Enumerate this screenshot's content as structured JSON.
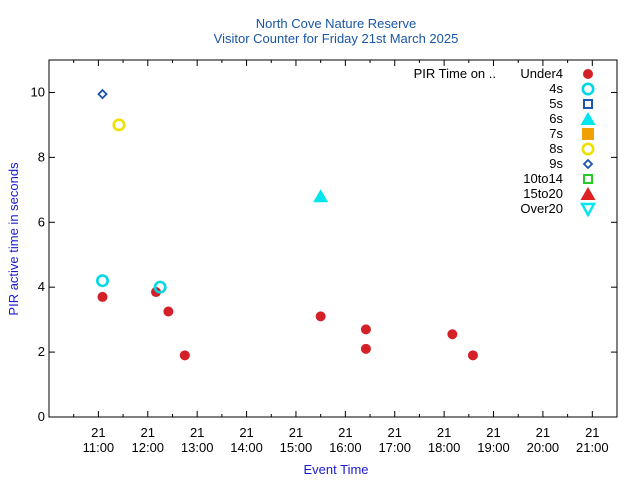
{
  "chart_data": {
    "type": "scatter",
    "title": "North Cove Nature Reserve",
    "subtitle": "Visitor Counter for Friday 21st March 2025",
    "xlabel": "Event Time",
    "ylabel": "PIR active time in seconds",
    "xlim": [
      "10:00",
      "21:30"
    ],
    "ylim": [
      0,
      11
    ],
    "x_ticks": [
      {
        "day": "21",
        "time": "11:00"
      },
      {
        "day": "21",
        "time": "12:00"
      },
      {
        "day": "21",
        "time": "13:00"
      },
      {
        "day": "21",
        "time": "14:00"
      },
      {
        "day": "21",
        "time": "15:00"
      },
      {
        "day": "21",
        "time": "16:00"
      },
      {
        "day": "21",
        "time": "17:00"
      },
      {
        "day": "21",
        "time": "18:00"
      },
      {
        "day": "21",
        "time": "19:00"
      },
      {
        "day": "21",
        "time": "20:00"
      },
      {
        "day": "21",
        "time": "21:00"
      }
    ],
    "y_ticks": [
      "0",
      "2",
      "4",
      "6",
      "8",
      "10"
    ],
    "legend_title": "PIR Time on ..",
    "legend_position": "top-right",
    "series": [
      {
        "name": "Under4",
        "marker": "filled-circle",
        "color": "#d42027",
        "points": [
          [
            "11:05",
            3.7
          ],
          [
            "12:10",
            3.85
          ],
          [
            "12:25",
            3.25
          ],
          [
            "12:45",
            1.9
          ],
          [
            "15:30",
            3.1
          ],
          [
            "16:25",
            2.7
          ],
          [
            "16:25",
            2.1
          ],
          [
            "18:10",
            2.55
          ],
          [
            "18:35",
            1.9
          ]
        ]
      },
      {
        "name": "4s",
        "marker": "open-circle",
        "color": "#00d8e8",
        "points": [
          [
            "11:05",
            4.2
          ],
          [
            "12:15",
            4.0
          ]
        ]
      },
      {
        "name": "5s",
        "marker": "open-square",
        "color": "#1a56b0",
        "points": []
      },
      {
        "name": "6s",
        "marker": "filled-triangle-up",
        "color": "#00e5ee",
        "points": [
          [
            "15:30",
            6.8
          ]
        ]
      },
      {
        "name": "7s",
        "marker": "filled-square",
        "color": "#f0a000",
        "points": []
      },
      {
        "name": "8s",
        "marker": "open-circle",
        "color": "#f0e000",
        "points": [
          [
            "11:25",
            9.0
          ]
        ]
      },
      {
        "name": "9s",
        "marker": "open-diamond",
        "color": "#1a56b0",
        "points": [
          [
            "11:05",
            9.95
          ]
        ]
      },
      {
        "name": "10to14",
        "marker": "open-square",
        "color": "#22cc22",
        "points": []
      },
      {
        "name": "15to20",
        "marker": "filled-triangle-up",
        "color": "#e02020",
        "points": []
      },
      {
        "name": "Over20",
        "marker": "open-triangle-down",
        "color": "#00e5ee",
        "points": []
      }
    ]
  }
}
